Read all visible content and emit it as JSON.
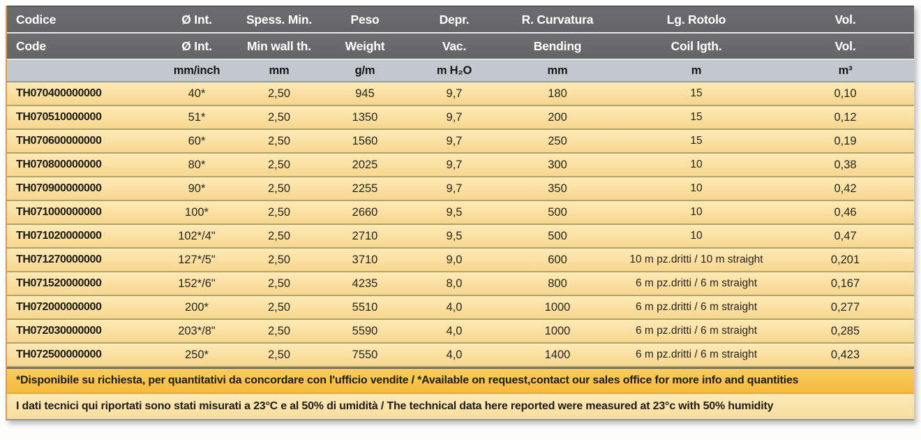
{
  "table": {
    "header": {
      "columns": [
        {
          "it": "Codice",
          "en": "Code",
          "unit": ""
        },
        {
          "it": "Ø Int.",
          "en": "Ø Int.",
          "unit": "mm/inch"
        },
        {
          "it": "Spess. Min.",
          "en": "Min wall th.",
          "unit": "mm"
        },
        {
          "it": "Peso",
          "en": "Weight",
          "unit": "g/m"
        },
        {
          "it": "Depr.",
          "en": "Vac.",
          "unit": "m H₂O"
        },
        {
          "it": "R. Curvatura",
          "en": "Bending",
          "unit": "mm"
        },
        {
          "it": "Lg. Rotolo",
          "en": "Coil lgth.",
          "unit": "m"
        },
        {
          "it": "Vol.",
          "en": "Vol.",
          "unit": "m³"
        }
      ]
    },
    "rows": [
      [
        "TH070400000000",
        "40*",
        "2,50",
        "945",
        "9,7",
        "180",
        "15",
        "0,10"
      ],
      [
        "TH070510000000",
        "51*",
        "2,50",
        "1350",
        "9,7",
        "200",
        "15",
        "0,12"
      ],
      [
        "TH070600000000",
        "60*",
        "2,50",
        "1560",
        "9,7",
        "250",
        "15",
        "0,19"
      ],
      [
        "TH070800000000",
        "80*",
        "2,50",
        "2025",
        "9,7",
        "300",
        "10",
        "0,38"
      ],
      [
        "TH070900000000",
        "90*",
        "2,50",
        "2255",
        "9,7",
        "350",
        "10",
        "0,42"
      ],
      [
        "TH071000000000",
        "100*",
        "2,50",
        "2660",
        "9,5",
        "500",
        "10",
        "0,46"
      ],
      [
        "TH071020000000",
        "102*/4\"",
        "2,50",
        "2710",
        "9,5",
        "500",
        "10",
        "0,47"
      ],
      [
        "TH071270000000",
        "127*/5\"",
        "2,50",
        "3710",
        "9,0",
        "600",
        "10 m pz.dritti / 10 m straight",
        "0,201"
      ],
      [
        "TH071520000000",
        "152*/6\"",
        "2,50",
        "4235",
        "8,0",
        "800",
        "6 m pz.dritti / 6 m straight",
        "0,167"
      ],
      [
        "TH072000000000",
        "200*",
        "2,50",
        "5510",
        "4,0",
        "1000",
        "6 m pz.dritti / 6 m straight",
        "0,277"
      ],
      [
        "TH072030000000",
        "203*/8\"",
        "2,50",
        "5590",
        "4,0",
        "1000",
        "6 m pz.dritti / 6 m straight",
        "0,285"
      ],
      [
        "TH072500000000",
        "250*",
        "2,50",
        "7550",
        "4,0",
        "1400",
        "6 m pz.dritti / 6 m straight",
        "0,423"
      ]
    ],
    "notes": [
      "*Disponibile su richiesta, per quantitativi da concordare con l'ufficio vendite / *Available on request,contact our sales office for more info and quantities",
      "I dati tecnici qui riportati sono stati misurati a 23°C e al 50% di umidità / The technical data here reported were measured at 23°c with 50% humidity"
    ],
    "colors": {
      "header_gray": "#69696b",
      "units_gray": "#c3c7ce",
      "row_yellow": "#fadfa0",
      "row_separator": "#b2a169",
      "note_amber": "#f6c14b",
      "header_text": "#ffffff",
      "body_text": "#26251f"
    }
  }
}
